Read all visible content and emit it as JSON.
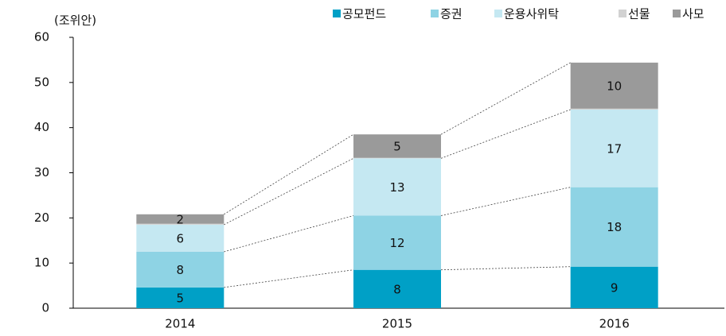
{
  "chart_data": {
    "type": "stacked_bar",
    "unit_label": "(조위안)",
    "categories": [
      "2014",
      "2015",
      "2016"
    ],
    "series": [
      {
        "name": "공모펀드",
        "color": "#00a0c6",
        "values": [
          4.6,
          8.5,
          9.2
        ],
        "value_labels": [
          "5",
          "8",
          "9"
        ]
      },
      {
        "name": "증권",
        "color": "#8ed3e4",
        "values": [
          7.9,
          12.0,
          17.6
        ],
        "value_labels": [
          "8",
          "12",
          "18"
        ]
      },
      {
        "name": "운용사위탁",
        "color": "#c5e8f2",
        "values": [
          6.0,
          12.7,
          17.2
        ],
        "value_labels": [
          "6",
          "13",
          "17"
        ]
      },
      {
        "name": "선물",
        "color": "#d2d2d2",
        "values": [
          0.2,
          0.1,
          0.2
        ]
      },
      {
        "name": "사모",
        "color": "#9a9a9a",
        "values": [
          2.1,
          5.2,
          10.2
        ],
        "value_labels": [
          "2",
          "5",
          "10"
        ]
      }
    ],
    "ylim": [
      0,
      60
    ],
    "yticks": [
      0,
      10,
      20,
      30,
      40,
      50,
      60
    ]
  }
}
